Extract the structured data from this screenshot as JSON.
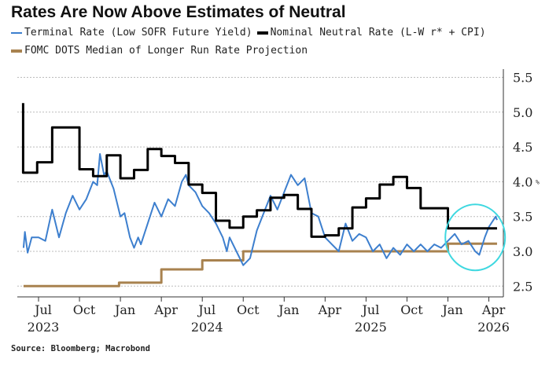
{
  "chart_data": {
    "type": "line",
    "title": "Rates Are Now Above Estimates of Neutral",
    "source": "Source: Bloomberg; Macrobond",
    "unit_label": "%",
    "x_unit": "months since Jan 2023",
    "ylim": [
      2.4,
      5.6
    ],
    "yticks": [
      "5.5",
      "5.0",
      "4.5",
      "4.0",
      "3.5",
      "3.0",
      "2.5"
    ],
    "ytick_values": [
      5.5,
      5.0,
      4.5,
      4.0,
      3.5,
      3.0,
      2.5
    ],
    "xticks": [
      {
        "t": 6,
        "label": "Jul"
      },
      {
        "t": 9,
        "label": "Oct"
      },
      {
        "t": 12,
        "label": "Jan"
      },
      {
        "t": 15,
        "label": "Apr"
      },
      {
        "t": 18,
        "label": "Jul"
      },
      {
        "t": 21,
        "label": "Oct"
      },
      {
        "t": 24,
        "label": "Jan"
      },
      {
        "t": 27,
        "label": "Apr"
      },
      {
        "t": 30,
        "label": "Jul"
      },
      {
        "t": 33,
        "label": "Oct"
      },
      {
        "t": 36,
        "label": "Jan"
      },
      {
        "t": 39,
        "label": "Apr"
      }
    ],
    "year_labels": [
      {
        "t": 6,
        "label": "2023"
      },
      {
        "t": 18,
        "label": "2024"
      },
      {
        "t": 30,
        "label": "2025"
      },
      {
        "t": 39,
        "label": "2026"
      }
    ],
    "grid": true,
    "legend_position": "top-left",
    "series": [
      {
        "name": "Terminal Rate (Low SOFR Future Yield)",
        "color": "#3d7fce",
        "step": false,
        "points": [
          [
            4.9,
            3.05
          ],
          [
            5.0,
            3.28
          ],
          [
            5.2,
            2.98
          ],
          [
            5.5,
            3.2
          ],
          [
            6.0,
            3.2
          ],
          [
            6.5,
            3.15
          ],
          [
            7,
            3.6
          ],
          [
            7.5,
            3.2
          ],
          [
            8,
            3.55
          ],
          [
            8.5,
            3.8
          ],
          [
            9,
            3.6
          ],
          [
            9.5,
            3.75
          ],
          [
            10,
            4.0
          ],
          [
            10.3,
            3.95
          ],
          [
            10.5,
            4.4
          ],
          [
            10.8,
            4.1
          ],
          [
            11,
            4.15
          ],
          [
            11.5,
            3.9
          ],
          [
            12,
            3.5
          ],
          [
            12.3,
            3.55
          ],
          [
            12.7,
            3.2
          ],
          [
            13,
            3.05
          ],
          [
            13.3,
            3.2
          ],
          [
            13.5,
            3.1
          ],
          [
            14,
            3.4
          ],
          [
            14.5,
            3.7
          ],
          [
            15,
            3.5
          ],
          [
            15.5,
            3.75
          ],
          [
            16,
            3.65
          ],
          [
            16.5,
            4.0
          ],
          [
            16.8,
            4.1
          ],
          [
            17,
            3.95
          ],
          [
            17.5,
            3.85
          ],
          [
            18,
            3.65
          ],
          [
            18.5,
            3.55
          ],
          [
            19,
            3.4
          ],
          [
            19.5,
            3.2
          ],
          [
            19.8,
            3.0
          ],
          [
            20,
            3.2
          ],
          [
            20.5,
            3.0
          ],
          [
            21,
            2.8
          ],
          [
            21.5,
            2.9
          ],
          [
            22,
            3.3
          ],
          [
            22.5,
            3.55
          ],
          [
            23,
            3.8
          ],
          [
            23.5,
            3.6
          ],
          [
            24,
            3.85
          ],
          [
            24.5,
            4.1
          ],
          [
            25,
            3.95
          ],
          [
            25.5,
            4.05
          ],
          [
            26,
            3.55
          ],
          [
            26.5,
            3.5
          ],
          [
            27,
            3.2
          ],
          [
            27.5,
            3.1
          ],
          [
            28,
            3.0
          ],
          [
            28.5,
            3.4
          ],
          [
            29,
            3.15
          ],
          [
            29.5,
            3.25
          ],
          [
            30,
            3.2
          ],
          [
            30.5,
            3.0
          ],
          [
            31,
            3.1
          ],
          [
            31.5,
            2.9
          ],
          [
            32,
            3.05
          ],
          [
            32.5,
            2.95
          ],
          [
            33,
            3.1
          ],
          [
            33.5,
            3.0
          ],
          [
            34,
            3.1
          ],
          [
            34.5,
            3.0
          ],
          [
            35,
            3.1
          ],
          [
            35.5,
            3.05
          ],
          [
            36,
            3.15
          ],
          [
            36.5,
            3.25
          ],
          [
            37,
            3.1
          ],
          [
            37.5,
            3.15
          ],
          [
            38,
            3.0
          ],
          [
            38.3,
            2.95
          ],
          [
            38.7,
            3.2
          ],
          [
            39,
            3.35
          ],
          [
            39.5,
            3.5
          ],
          [
            39.6,
            3.45
          ]
        ]
      },
      {
        "name": "Nominal Neutral Rate (L-W r* + CPI)",
        "color": "#000000",
        "step": true,
        "points": [
          [
            4.87,
            5.13
          ],
          [
            4.87,
            4.13
          ],
          [
            5.9,
            4.28
          ],
          [
            7,
            4.78
          ],
          [
            9,
            4.18
          ],
          [
            10,
            4.08
          ],
          [
            11,
            4.38
          ],
          [
            12,
            4.05
          ],
          [
            13,
            4.17
          ],
          [
            14,
            4.47
          ],
          [
            15,
            4.37
          ],
          [
            16,
            4.27
          ],
          [
            17,
            3.96
          ],
          [
            18,
            3.84
          ],
          [
            19,
            3.44
          ],
          [
            20,
            3.34
          ],
          [
            21,
            3.5
          ],
          [
            22,
            3.59
          ],
          [
            23,
            3.77
          ],
          [
            24,
            3.81
          ],
          [
            25,
            3.61
          ],
          [
            26,
            3.21
          ],
          [
            27,
            3.23
          ],
          [
            28,
            3.33
          ],
          [
            29,
            3.63
          ],
          [
            30,
            3.76
          ],
          [
            31,
            3.96
          ],
          [
            32,
            4.07
          ],
          [
            33,
            3.91
          ],
          [
            34,
            3.62
          ],
          [
            36,
            3.33
          ],
          [
            39.6,
            3.33
          ]
        ]
      },
      {
        "name": "FOMC DOTS Median of Longer Run Rate Projection",
        "color": "#a8824f",
        "step": true,
        "points": [
          [
            4.9,
            2.5
          ],
          [
            11.9,
            2.55
          ],
          [
            15,
            2.74
          ],
          [
            18,
            2.87
          ],
          [
            21,
            3.0
          ],
          [
            36,
            3.11
          ],
          [
            39.6,
            3.11
          ]
        ]
      }
    ],
    "annotation": {
      "type": "circle",
      "color": "#3fd8e0",
      "t": 38,
      "value": 3.2
    }
  }
}
